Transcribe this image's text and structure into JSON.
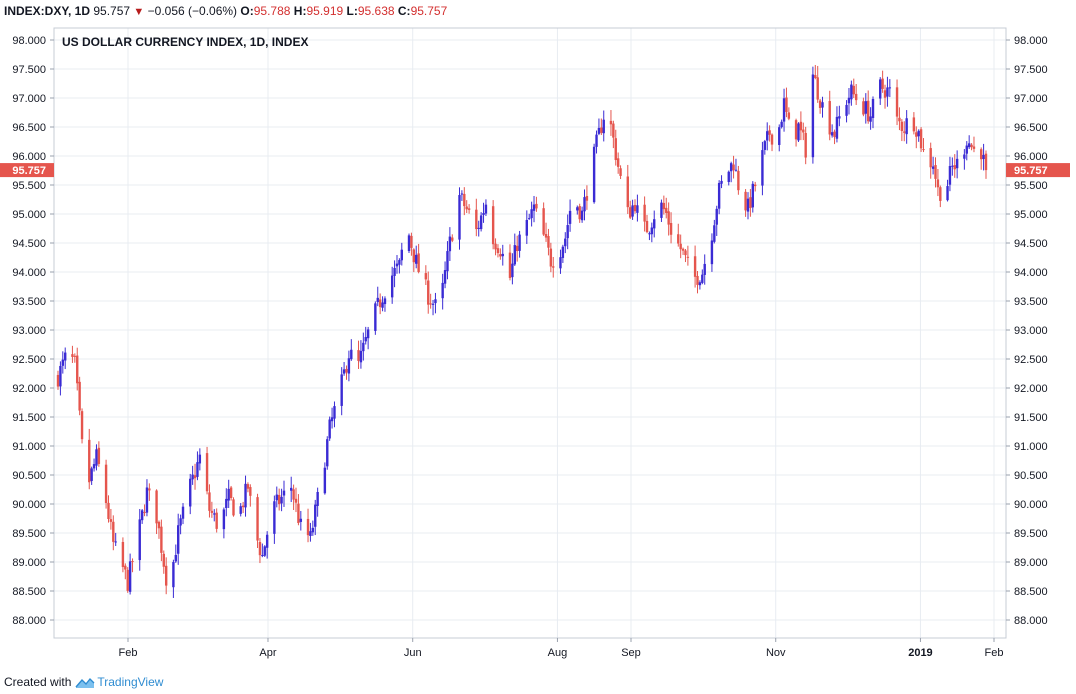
{
  "header": {
    "symbol": "INDEX:DXY, 1D",
    "last": "95.757",
    "change": "−0.056 (−0.06%)",
    "o_label": "O:",
    "o_value": "95.788",
    "h_label": "H:",
    "h_value": "95.919",
    "l_label": "L:",
    "l_value": "95.638",
    "c_label": "C:",
    "c_value": "95.757"
  },
  "footer": {
    "created_with": "Created with",
    "brand": "TradingView"
  },
  "colors": {
    "up": "#3a2bd4",
    "down": "#e5554d",
    "grid": "#e8ecf2",
    "price_tag": "#e5554d"
  },
  "chart_data": {
    "type": "candlestick",
    "title": "US DOLLAR CURRENCY INDEX, 1D, INDEX",
    "ylim": [
      87.75,
      98.25
    ],
    "yticks": [
      "98.000",
      "97.500",
      "97.000",
      "96.500",
      "96.000",
      "95.500",
      "95.000",
      "94.500",
      "94.000",
      "93.500",
      "93.000",
      "92.500",
      "92.000",
      "91.500",
      "91.000",
      "90.500",
      "90.000",
      "89.500",
      "89.000",
      "88.500",
      "88.000"
    ],
    "xticks": [
      {
        "label": "Feb",
        "day": 31,
        "bold": false
      },
      {
        "label": "Apr",
        "day": 90,
        "bold": false
      },
      {
        "label": "Jun",
        "day": 151,
        "bold": false
      },
      {
        "label": "Aug",
        "day": 212,
        "bold": false
      },
      {
        "label": "Sep",
        "day": 243,
        "bold": false
      },
      {
        "label": "Nov",
        "day": 304,
        "bold": false
      },
      {
        "label": "2019",
        "day": 365,
        "bold": true
      },
      {
        "label": "Feb",
        "day": 396,
        "bold": false
      }
    ],
    "x_start_day": 0,
    "x_end_day": 403,
    "last_price": "95.757",
    "last_price_value": 95.757,
    "anchors": [
      [
        1,
        92.2
      ],
      [
        5,
        92.6
      ],
      [
        8,
        92.4
      ],
      [
        11,
        91.0
      ],
      [
        14,
        90.4
      ],
      [
        17,
        90.8
      ],
      [
        20,
        90.3
      ],
      [
        24,
        89.3
      ],
      [
        27,
        89.0
      ],
      [
        30,
        88.65
      ],
      [
        34,
        89.4
      ],
      [
        38,
        90.2
      ],
      [
        42,
        89.8
      ],
      [
        45,
        89.0
      ],
      [
        47,
        88.5
      ],
      [
        51,
        89.5
      ],
      [
        56,
        90.3
      ],
      [
        60,
        90.8
      ],
      [
        64,
        89.9
      ],
      [
        68,
        89.6
      ],
      [
        72,
        90.1
      ],
      [
        76,
        89.8
      ],
      [
        80,
        90.3
      ],
      [
        83,
        89.5
      ],
      [
        86,
        89.1
      ],
      [
        90,
        89.9
      ],
      [
        94,
        90.1
      ],
      [
        98,
        90.3
      ],
      [
        102,
        89.6
      ],
      [
        106,
        89.4
      ],
      [
        110,
        90.3
      ],
      [
        114,
        91.3
      ],
      [
        118,
        91.9
      ],
      [
        122,
        92.6
      ],
      [
        126,
        92.4
      ],
      [
        129,
        92.8
      ],
      [
        132,
        93.2
      ],
      [
        135,
        93.5
      ],
      [
        139,
        93.9
      ],
      [
        143,
        94.1
      ],
      [
        146,
        94.8
      ],
      [
        149,
        94.3
      ],
      [
        152,
        93.9
      ],
      [
        155,
        93.6
      ],
      [
        158,
        93.4
      ],
      [
        161,
        93.7
      ],
      [
        164,
        94.5
      ],
      [
        168,
        95.3
      ],
      [
        172,
        95.0
      ],
      [
        175,
        94.7
      ],
      [
        179,
        95.2
      ],
      [
        182,
        94.6
      ],
      [
        185,
        94.4
      ],
      [
        189,
        93.9
      ],
      [
        192,
        94.5
      ],
      [
        195,
        94.7
      ],
      [
        199,
        95.1
      ],
      [
        203,
        94.6
      ],
      [
        206,
        94.2
      ],
      [
        209,
        94.3
      ],
      [
        212,
        94.6
      ],
      [
        215,
        95.3
      ],
      [
        219,
        95.0
      ],
      [
        222,
        95.6
      ],
      [
        225,
        96.2
      ],
      [
        228,
        96.7
      ],
      [
        231,
        96.5
      ],
      [
        235,
        95.6
      ],
      [
        238,
        95.0
      ],
      [
        241,
        95.2
      ],
      [
        244,
        94.7
      ],
      [
        247,
        94.8
      ],
      [
        251,
        95.2
      ],
      [
        254,
        95.0
      ],
      [
        257,
        94.6
      ],
      [
        260,
        94.4
      ],
      [
        263,
        94.1
      ],
      [
        266,
        93.9
      ],
      [
        269,
        94.0
      ],
      [
        273,
        94.7
      ],
      [
        276,
        95.4
      ],
      [
        279,
        95.7
      ],
      [
        282,
        95.9
      ],
      [
        285,
        95.3
      ],
      [
        288,
        95.1
      ],
      [
        291,
        95.5
      ],
      [
        294,
        96.0
      ],
      [
        297,
        96.4
      ],
      [
        300,
        96.3
      ],
      [
        303,
        96.9
      ],
      [
        306,
        96.3
      ],
      [
        309,
        96.5
      ],
      [
        313,
        96.0
      ],
      [
        315,
        97.4
      ],
      [
        318,
        97.0
      ],
      [
        321,
        96.6
      ],
      [
        324,
        96.4
      ],
      [
        328,
        96.9
      ],
      [
        331,
        97.1
      ],
      [
        335,
        96.9
      ],
      [
        339,
        96.7
      ],
      [
        343,
        97.2
      ],
      [
        347,
        97.1
      ],
      [
        350,
        96.6
      ],
      [
        353,
        96.5
      ],
      [
        356,
        96.7
      ],
      [
        359,
        96.4
      ],
      [
        362,
        95.9
      ],
      [
        365,
        95.9
      ],
      [
        367,
        95.4
      ],
      [
        370,
        95.4
      ],
      [
        373,
        95.8
      ],
      [
        376,
        95.9
      ],
      [
        379,
        96.3
      ],
      [
        382,
        96.1
      ],
      [
        384,
        96.3
      ],
      [
        386,
        95.9
      ],
      [
        387,
        95.76
      ]
    ]
  }
}
